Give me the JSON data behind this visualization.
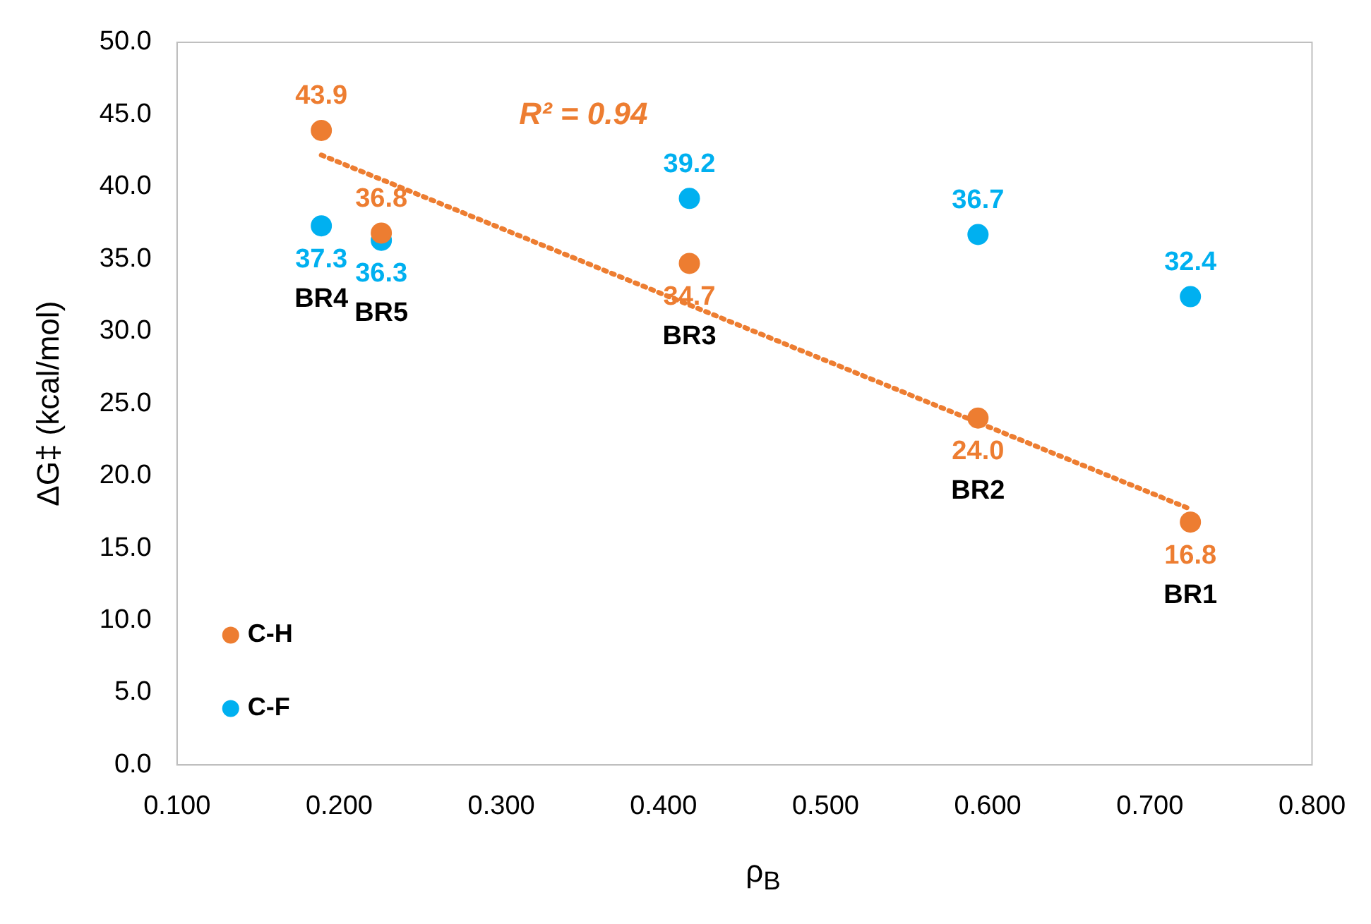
{
  "chart_data": {
    "type": "scatter",
    "xlabel": "ρ$_{B}$",
    "ylabel": "ΔG‡ (kcal/mol)",
    "x": [
      0.189,
      0.226,
      0.416,
      0.594,
      0.725
    ],
    "series": [
      {
        "name": "C-H",
        "color": "#ed7d31",
        "values": [
          43.9,
          36.8,
          34.7,
          24.0,
          16.8
        ],
        "value_labels": [
          "43.9",
          "36.8",
          "34.7",
          "24.0",
          "16.8"
        ]
      },
      {
        "name": "C-F",
        "color": "#00b0f0",
        "values": [
          37.3,
          36.3,
          39.2,
          36.7,
          32.4
        ],
        "value_labels": [
          "37.3",
          "36.3",
          "39.2",
          "36.7",
          "32.4"
        ]
      },
      {
        "type": "line",
        "color": "#ed7d31",
        "line_style": "dotted",
        "marker": "none",
        "x": [
          0.189,
          0.725
        ],
        "values": [
          42.2,
          17.7
        ]
      }
    ],
    "annotations": [
      "R² = 0.94",
      "BR4",
      "BR5",
      "BR3",
      "BR2",
      "BR1"
    ],
    "marker": "circle",
    "legend": "bottom left",
    "grid": false,
    "xlim": [
      0.1,
      0.8
    ],
    "xticks": [
      {
        "value": 0.1,
        "label": "0.100"
      },
      {
        "value": 0.2,
        "label": "0.200"
      },
      {
        "value": 0.3,
        "label": "0.300"
      },
      {
        "value": 0.4,
        "label": "0.400"
      },
      {
        "value": 0.5,
        "label": "0.500"
      },
      {
        "value": 0.6,
        "label": "0.600"
      },
      {
        "value": 0.7,
        "label": "0.700"
      },
      {
        "value": 0.8,
        "label": "0.800"
      }
    ],
    "ylim": [
      0,
      50
    ],
    "yticks": [
      {
        "value": 0,
        "label": "0.0"
      },
      {
        "value": 5,
        "label": "5.0"
      },
      {
        "value": 10,
        "label": "10.0"
      },
      {
        "value": 15,
        "label": "15.0"
      },
      {
        "value": 20,
        "label": "20.0"
      },
      {
        "value": 25,
        "label": "25.0"
      },
      {
        "value": 30,
        "label": "30.0"
      },
      {
        "value": 35,
        "label": "35.0"
      },
      {
        "value": 40,
        "label": "40.0"
      },
      {
        "value": 45,
        "label": "45.0"
      },
      {
        "value": 50,
        "label": "50.0"
      }
    ]
  }
}
